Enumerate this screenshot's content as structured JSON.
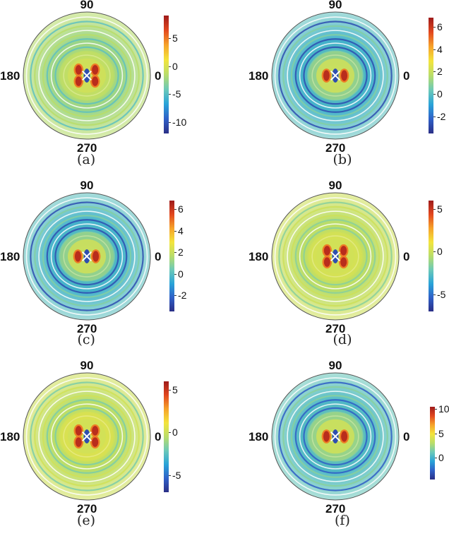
{
  "figure": {
    "colormap": [
      "#2b2f86",
      "#2f60c8",
      "#29a3d8",
      "#6cc9b8",
      "#b9dd6a",
      "#f3e43c",
      "#f6a32a",
      "#e2471e",
      "#9e1b1b"
    ],
    "angle_labels": {
      "top": "90",
      "left": "180",
      "right": "0",
      "bottom": "270"
    }
  },
  "chart_data": [
    {
      "type": "polar-contour",
      "caption": "(a)",
      "colorbar": {
        "min": -12,
        "max": 9,
        "ticks": [
          5,
          0,
          -5,
          -10
        ],
        "tick_labels": [
          "5",
          "0",
          "-5",
          "-10"
        ]
      },
      "field": {
        "background": 0.45,
        "rings": 0.1,
        "lobes": [
          "red",
          "red",
          "red",
          "red"
        ],
        "center": "blue"
      }
    },
    {
      "type": "polar-contour",
      "caption": "(b)",
      "colorbar": {
        "min": -3.5,
        "max": 6.8,
        "ticks": [
          6,
          4,
          2,
          0,
          -2
        ],
        "tick_labels": [
          "6",
          "4",
          "2",
          "0",
          "-2"
        ]
      },
      "field": {
        "background": 0.3,
        "rings": 0.22,
        "lobes": [
          "red",
          "red"
        ],
        "center": "blue"
      }
    },
    {
      "type": "polar-contour",
      "caption": "(c)",
      "colorbar": {
        "min": -3.5,
        "max": 6.8,
        "ticks": [
          6,
          4,
          2,
          0,
          -2
        ],
        "tick_labels": [
          "6",
          "4",
          "2",
          "0",
          "-2"
        ]
      },
      "field": {
        "background": 0.3,
        "rings": 0.22,
        "lobes": [
          "red",
          "red"
        ],
        "center": "blue"
      }
    },
    {
      "type": "polar-contour",
      "caption": "(d)",
      "colorbar": {
        "min": -7,
        "max": 6,
        "ticks": [
          5,
          0,
          -5
        ],
        "tick_labels": [
          "5",
          "0",
          "-5"
        ]
      },
      "field": {
        "background": 0.5,
        "rings": 0.08,
        "lobes": [
          "red",
          "red",
          "red",
          "red"
        ],
        "center": "blue"
      }
    },
    {
      "type": "polar-contour",
      "caption": "(e)",
      "colorbar": {
        "min": -7,
        "max": 6,
        "ticks": [
          5,
          0,
          -5
        ],
        "tick_labels": [
          "5",
          "0",
          "-5"
        ]
      },
      "field": {
        "background": 0.5,
        "rings": 0.1,
        "lobes": [
          "red",
          "red",
          "red",
          "red"
        ],
        "center": "blue"
      }
    },
    {
      "type": "polar-contour",
      "caption": "(f)",
      "colorbar": {
        "min": -4.5,
        "max": 10.5,
        "ticks": [
          10,
          5,
          0
        ],
        "tick_labels": [
          "10",
          "5",
          "0"
        ]
      },
      "field": {
        "background": 0.32,
        "rings": 0.2,
        "lobes": [
          "red",
          "red"
        ],
        "center": "blue"
      }
    }
  ]
}
